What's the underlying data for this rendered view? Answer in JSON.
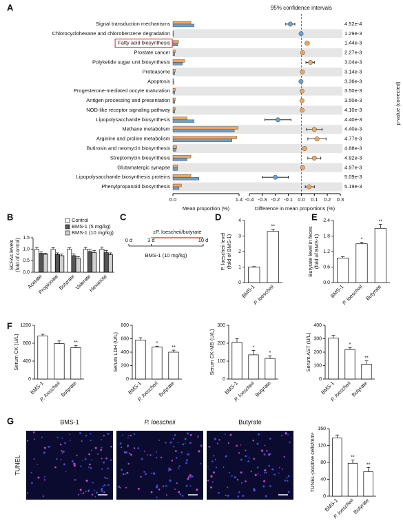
{
  "chart_data": [
    {
      "type": "extended_error_bar",
      "panel": "A",
      "title": "95% confidence intervals",
      "categories": [
        "Signal transduction mechanisms",
        "Chlorocyclohexane and chlorobenzene degradation",
        "Fatty acid biosynthesis",
        "Prostate cancer",
        "Polyketide sugar unit biosynthesis",
        "Proteasome",
        "Apoptosis",
        "Progesterone-mediated oocyte maturation",
        "Antigen processing and presentation",
        "NOD-like receptor signaling pathway",
        "Lipopolysaccharide biosynthesis",
        "Methane metabolism",
        "Arginine and proline metabolism",
        "Butirosin and neomycin biosynthesis",
        "Streptomycin biosynthesis",
        "Glutamatergic synapse",
        "Lipopolysaccharide biosynthesis proteins",
        "Phenylpropanoid biosynthesis"
      ],
      "highlight": 2,
      "series": [
        {
          "color": "#f2a65a",
          "values": [
            0.38,
            0.01,
            0.12,
            0.05,
            0.25,
            0.05,
            0.02,
            0.05,
            0.05,
            0.05,
            0.3,
            1.38,
            1.35,
            0.08,
            0.38,
            0.1,
            0.38,
            0.18
          ]
        },
        {
          "color": "#6a9fd0",
          "values": [
            0.45,
            0.01,
            0.1,
            0.04,
            0.2,
            0.04,
            0.02,
            0.04,
            0.04,
            0.04,
            0.45,
            1.3,
            1.25,
            0.07,
            0.3,
            0.1,
            0.55,
            0.13
          ]
        }
      ],
      "difference": {
        "positive_color": "#f2a65a",
        "negative_color": "#6a9fd0",
        "values": [
          -0.085,
          -0.002,
          0.045,
          0.01,
          0.07,
          0.008,
          -0.003,
          0.005,
          0.005,
          0.006,
          -0.18,
          0.1,
          0.12,
          0.025,
          0.1,
          0.01,
          -0.2,
          0.06
        ],
        "ci_low": [
          -0.12,
          -0.006,
          0.03,
          0.0,
          0.035,
          0.0,
          -0.008,
          0.0,
          0.0,
          0.0,
          -0.28,
          0.04,
          0.05,
          0.01,
          0.05,
          0.0,
          -0.3,
          0.03
        ],
        "ci_high": [
          -0.05,
          0.002,
          0.06,
          0.02,
          0.1,
          0.016,
          0.002,
          0.01,
          0.01,
          0.012,
          -0.08,
          0.16,
          0.19,
          0.04,
          0.15,
          0.02,
          -0.1,
          0.1
        ]
      },
      "p_values": [
        "4.52e-4",
        "1.29e-3",
        "1.44e-3",
        "2.27e-3",
        "3.04e-3",
        "3.14e-3",
        "3.36e-3",
        "3.50e-3",
        "3.50e-3",
        "4.10e-3",
        "4.40e-3",
        "4.40e-3",
        "4.77e-3",
        "4.88e-3",
        "4.92e-3",
        "4.97e-3",
        "5.09e-3",
        "5.19e-3"
      ],
      "xlabel": "Mean proportion (%)",
      "xlim": [
        0,
        1.4
      ],
      "xticks": [
        {
          "value": 0,
          "label": "0.0"
        },
        1.4
      ],
      "x2label": "Difference in mean proportions (%)",
      "x2lim": [
        -0.4,
        0.3
      ],
      "x2ticks": [
        -0.4,
        -0.3,
        -0.2,
        -0.1,
        {
          "value": 0,
          "label": "0.0"
        },
        0.1,
        0.2,
        0.3
      ],
      "ylabel": "p-value (corrected)"
    },
    {
      "type": "bar",
      "panel": "B",
      "ylabel": [
        "SCFAs levels",
        "(fold of control)"
      ],
      "categories": [
        "Acetate",
        "Propionate",
        "Butyrate",
        "Valerate",
        "Hexanote"
      ],
      "legend": true,
      "series": [
        {
          "name": "Control",
          "color": "#ffffff",
          "values": [
            1.0,
            1.0,
            1.0,
            1.0,
            1.0
          ],
          "errors": [
            0.08,
            0.07,
            0.06,
            0.08,
            0.09
          ]
        },
        {
          "name": "BMS-1 (5 mg/kg)",
          "color": "#555555",
          "values": [
            0.82,
            0.77,
            0.72,
            0.9,
            0.85
          ],
          "errors": [
            0.06,
            0.07,
            0.08,
            0.1,
            0.1
          ]
        },
        {
          "name": "BMS-1 (10 mg/kg)",
          "color": "#d0d0d0",
          "values": [
            0.78,
            0.72,
            0.62,
            0.85,
            0.76
          ],
          "errors": [
            0.05,
            0.07,
            0.06,
            0.09,
            0.08
          ]
        }
      ],
      "ylim": [
        0,
        1.5
      ],
      "yticks": [
        {
          "value": 0,
          "label": "0.0"
        },
        0.5,
        {
          "value": 1,
          "label": "1.0"
        },
        1.5
      ]
    },
    {
      "type": "timeline",
      "panel": "C",
      "treatment": "±P. loescheii/butyrate",
      "treatment_range": [
        3,
        10
      ],
      "xlim": [
        0,
        10
      ],
      "xticks": [
        {
          "value": 0,
          "label": "0 d"
        },
        {
          "value": 3,
          "label": "3 d"
        },
        {
          "value": 10,
          "label": "10 d"
        }
      ],
      "baseline": "BMS-1 (10 mg/kg)"
    },
    {
      "type": "bar",
      "panel": "D",
      "ylabel": [
        "P. loescheii level",
        "(fold of BMS-1)"
      ],
      "categories": [
        "BMS-1",
        "P. loescheii"
      ],
      "color": "#ffffff",
      "values": [
        1.0,
        3.3
      ],
      "errors": [
        0.03,
        0.15
      ],
      "annotations": [
        null,
        "**"
      ],
      "ylim": [
        0,
        4
      ],
      "yticks": [
        0,
        1,
        2,
        3,
        4
      ]
    },
    {
      "type": "bar",
      "panel": "E",
      "ylabel": [
        "Butyrate level in feces",
        "(fold of BMS-1)"
      ],
      "categories": [
        "BMS-1",
        "P. loescheii",
        "Butyrate"
      ],
      "color": "#ffffff",
      "values": [
        0.95,
        1.5,
        2.1
      ],
      "errors": [
        0.05,
        0.06,
        0.15
      ],
      "annotations": [
        null,
        "*",
        "**"
      ],
      "ylim": [
        0,
        2.4
      ],
      "yticks": [
        {
          "value": 0,
          "label": "0.0"
        },
        0.6,
        1.2,
        1.8,
        2.4
      ]
    },
    {
      "type": "bar",
      "panel": "F",
      "ylabel": [
        "Serum CK (U/L)"
      ],
      "categories": [
        "BMS-1",
        "P. loescheii",
        "Butyrate"
      ],
      "color": "#ffffff",
      "values": [
        960,
        790,
        700
      ],
      "errors": [
        40,
        60,
        50
      ],
      "annotations": [
        null,
        null,
        "**"
      ],
      "ylim": [
        0,
        1200
      ],
      "yticks": [
        0,
        400,
        800,
        1200
      ]
    },
    {
      "type": "bar",
      "ylabel": [
        "Serum LDH (U/L)"
      ],
      "categories": [
        "BMS-1",
        "P. loescheii",
        "Butyrate"
      ],
      "color": "#ffffff",
      "values": [
        580,
        475,
        400
      ],
      "errors": [
        35,
        15,
        30
      ],
      "annotations": [
        null,
        "*",
        "**"
      ],
      "ylim": [
        0,
        800
      ],
      "yticks": [
        0,
        200,
        400,
        600,
        800
      ]
    },
    {
      "type": "bar",
      "ylabel": [
        "Serum CK-MB (U/L)"
      ],
      "categories": [
        "BMS-1",
        "P. loescheii",
        "Butyrate"
      ],
      "color": "#ffffff",
      "values": [
        205,
        135,
        115
      ],
      "errors": [
        20,
        25,
        15
      ],
      "annotations": [
        null,
        "*",
        "*"
      ],
      "ylim": [
        0,
        300
      ],
      "yticks": [
        0,
        100,
        200,
        300
      ]
    },
    {
      "type": "bar",
      "ylabel": [
        "Serum AST (U/L)"
      ],
      "categories": [
        "BMS-1",
        "P. loescheii",
        "Butyrate"
      ],
      "color": "#ffffff",
      "values": [
        305,
        220,
        110
      ],
      "errors": [
        20,
        15,
        25
      ],
      "annotations": [
        null,
        "*",
        "**"
      ],
      "ylim": [
        0,
        400
      ],
      "yticks": [
        0,
        100,
        200,
        300,
        400
      ]
    },
    {
      "type": "image_grid",
      "panel": "G",
      "labels": [
        "BMS-1",
        "P. loescheii",
        "Butyrate"
      ],
      "ylabel": "TUNEL"
    },
    {
      "type": "bar",
      "ylabel": [
        "TUNEL-positive cells/mm²"
      ],
      "categories": [
        "BMS-1",
        "P. loescheii",
        "Butyrate"
      ],
      "color": "#ffffff",
      "values": [
        138,
        78,
        58
      ],
      "errors": [
        7,
        8,
        10
      ],
      "annotations": [
        null,
        "**",
        "**"
      ],
      "ylim": [
        0,
        160
      ],
      "yticks": [
        0,
        40,
        80,
        120,
        160
      ]
    }
  ]
}
